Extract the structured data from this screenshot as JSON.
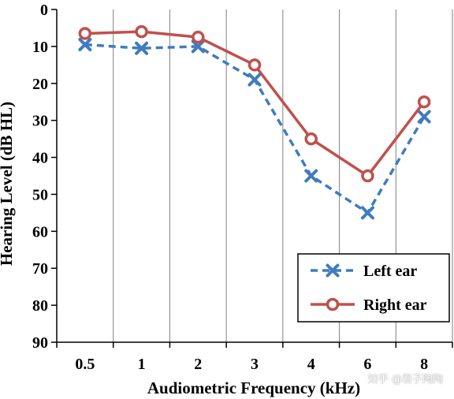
{
  "chart_data": {
    "type": "line",
    "xlabel": "Audiometric Frequency (kHz)",
    "ylabel": "Hearing Level (dB HL)",
    "categories": [
      "0.5",
      "1",
      "2",
      "3",
      "4",
      "6",
      "8"
    ],
    "ylim": [
      0,
      90
    ],
    "y_inverted": true,
    "y_ticks": [
      0,
      10,
      20,
      30,
      40,
      50,
      60,
      70,
      80,
      90
    ],
    "grid": "vertical",
    "legend_position": "bottom-right",
    "series": [
      {
        "name": "Left ear",
        "values": [
          9.5,
          10.5,
          10,
          19,
          45,
          55,
          29
        ],
        "color": "#3f7bbf",
        "marker": "x",
        "line": "dashed"
      },
      {
        "name": "Right ear",
        "values": [
          6.5,
          6,
          7.5,
          15,
          35,
          45,
          25
        ],
        "color": "#c0504d",
        "marker": "circle",
        "line": "solid"
      }
    ]
  },
  "watermark": "知乎 @君子陶陶"
}
